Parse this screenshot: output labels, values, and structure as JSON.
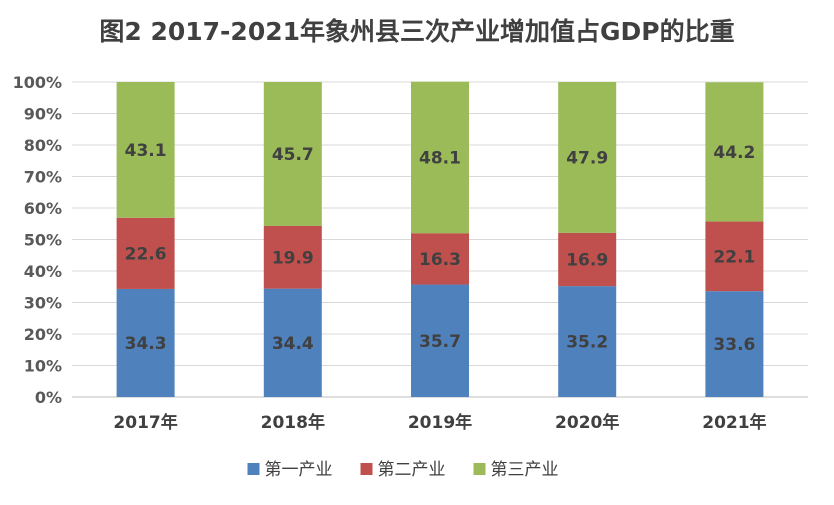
{
  "chart_data": {
    "type": "bar",
    "stacked": true,
    "title": "图2 2017-2021年象州县三次产业增加值占GDP的比重",
    "categories": [
      "2017年",
      "2018年",
      "2019年",
      "2020年",
      "2021年"
    ],
    "series": [
      {
        "name": "第一产业",
        "color": "#4f81bd",
        "values": [
          34.3,
          34.4,
          35.7,
          35.2,
          33.6
        ]
      },
      {
        "name": "第二产业",
        "color": "#c0504d",
        "values": [
          22.6,
          19.9,
          16.3,
          16.9,
          22.1
        ]
      },
      {
        "name": "第三产业",
        "color": "#9bbb59",
        "values": [
          43.1,
          45.7,
          48.1,
          47.9,
          44.2
        ]
      }
    ],
    "ylim": [
      0,
      100
    ],
    "yticks": [
      "0%",
      "10%",
      "20%",
      "30%",
      "40%",
      "50%",
      "60%",
      "70%",
      "80%",
      "90%",
      "100%"
    ],
    "grid": true,
    "legend": "bottom"
  }
}
